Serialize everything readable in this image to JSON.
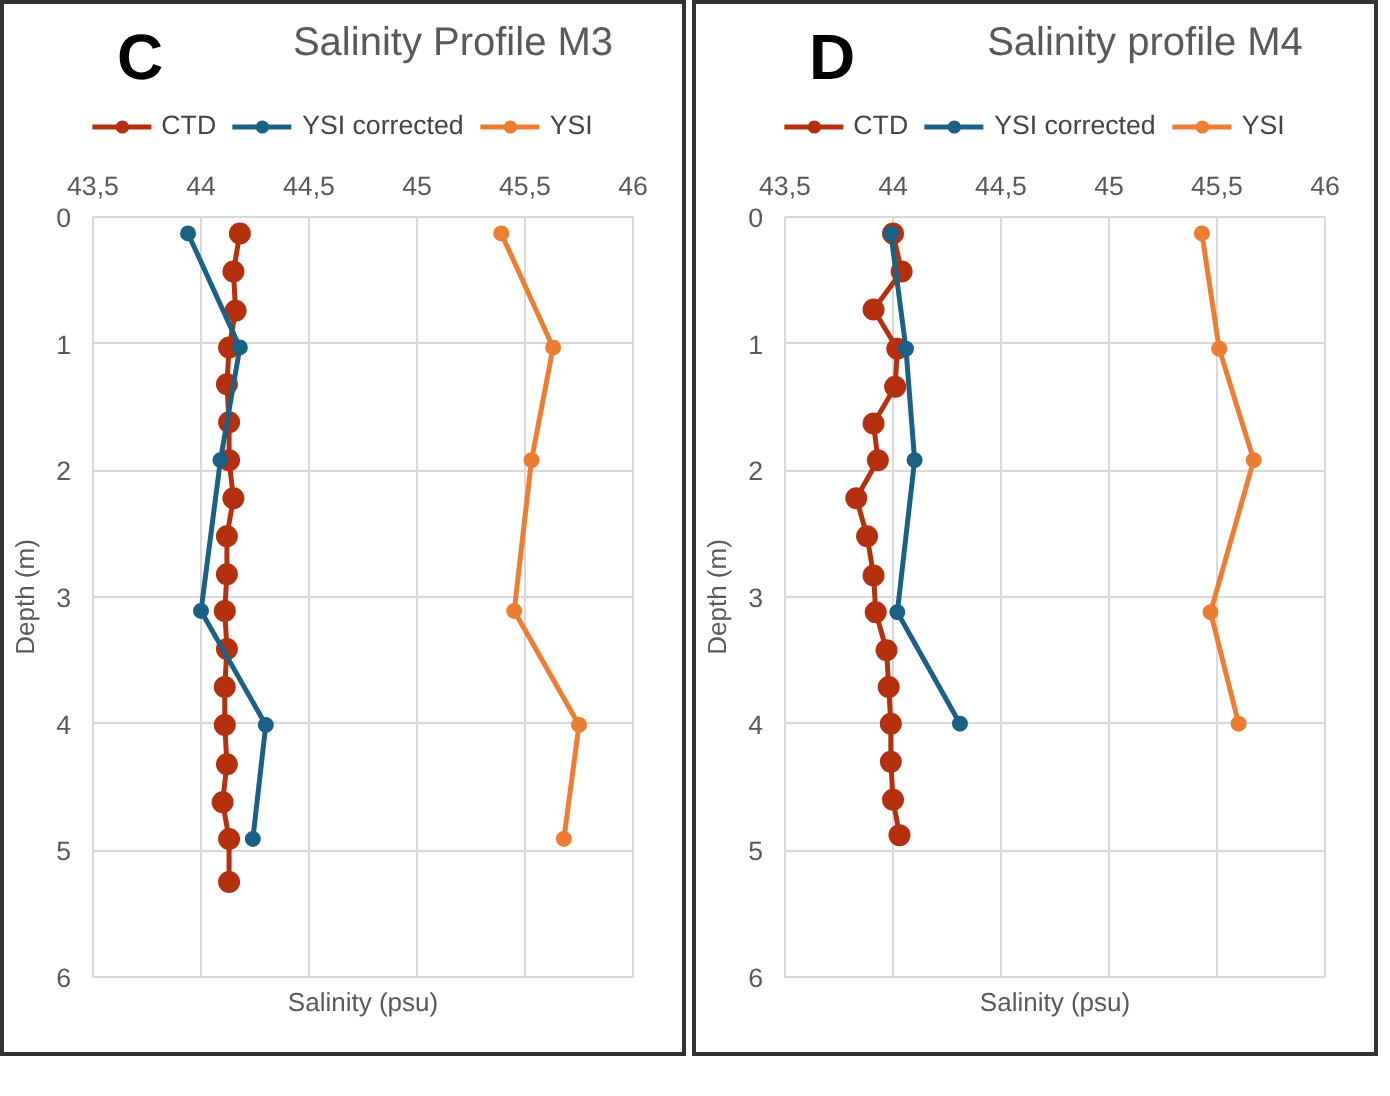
{
  "chart_data": [
    {
      "type": "line",
      "title": "Salinity Profile M3",
      "annotations": [
        "C"
      ],
      "xlabel": "Salinity (psu)",
      "ylabel": "Depth (m)",
      "xlim": [
        43.5,
        46
      ],
      "xticks": [
        {
          "value": 43.5,
          "label": "43,5"
        },
        44,
        {
          "value": 44.5,
          "label": "44,5"
        },
        45,
        {
          "value": 45.5,
          "label": "45,5"
        },
        46
      ],
      "ylim": [
        6,
        0
      ],
      "yticks": [
        0,
        1,
        2,
        3,
        4,
        5,
        6
      ],
      "grid": true,
      "legend": "top",
      "marker": "circle",
      "line_style": "solid",
      "series": [
        {
          "name": "CTD",
          "color": "#b5300e",
          "x": [
            44.18,
            44.15,
            44.16,
            44.13,
            44.12,
            44.13,
            44.13,
            44.15,
            44.12,
            44.12,
            44.11,
            44.12,
            44.11,
            44.11,
            44.12,
            44.1,
            44.13,
            44.13
          ],
          "values": [
            0.13,
            0.43,
            0.74,
            1.03,
            1.32,
            1.62,
            1.92,
            2.22,
            2.52,
            2.82,
            3.11,
            3.41,
            3.71,
            4.01,
            4.32,
            4.62,
            4.91,
            5.25
          ]
        },
        {
          "name": "YSI corrected",
          "color": "#1b6185",
          "x": [
            43.94,
            44.18,
            44.09,
            44.0,
            44.3,
            44.24
          ],
          "values": [
            0.13,
            1.03,
            1.92,
            3.11,
            4.01,
            4.91
          ]
        },
        {
          "name": "YSI",
          "color": "#ed7d31",
          "x": [
            45.39,
            45.63,
            45.53,
            45.45,
            45.75,
            45.68
          ],
          "values": [
            0.13,
            1.03,
            1.92,
            3.11,
            4.01,
            4.91
          ]
        }
      ]
    },
    {
      "type": "line",
      "title": "Salinity profile M4",
      "annotations": [
        "D"
      ],
      "xlabel": "Salinity (psu)",
      "ylabel": "Depth (m)",
      "xlim": [
        43.5,
        46
      ],
      "xticks": [
        {
          "value": 43.5,
          "label": "43,5"
        },
        44,
        {
          "value": 44.5,
          "label": "44,5"
        },
        45,
        {
          "value": 45.5,
          "label": "45,5"
        },
        46
      ],
      "ylim": [
        6,
        0
      ],
      "yticks": [
        0,
        1,
        2,
        3,
        4,
        5,
        6
      ],
      "grid": true,
      "legend": "top",
      "marker": "circle",
      "line_style": "solid",
      "series": [
        {
          "name": "CTD",
          "color": "#b5300e",
          "x": [
            44.0,
            44.04,
            43.91,
            44.02,
            44.01,
            43.91,
            43.93,
            43.83,
            43.88,
            43.91,
            43.92,
            43.97,
            43.98,
            43.99,
            43.99,
            44.0,
            44.03
          ],
          "values": [
            0.13,
            0.43,
            0.73,
            1.04,
            1.34,
            1.63,
            1.92,
            2.22,
            2.52,
            2.83,
            3.12,
            3.42,
            3.71,
            4.0,
            4.3,
            4.6,
            4.88
          ]
        },
        {
          "name": "YSI corrected",
          "color": "#1b6185",
          "x": [
            43.99,
            44.06,
            44.1,
            44.02,
            44.31
          ],
          "values": [
            0.13,
            1.04,
            1.92,
            3.12,
            4.0
          ]
        },
        {
          "name": "YSI",
          "color": "#ed7d31",
          "x": [
            45.43,
            45.51,
            45.67,
            45.47,
            45.6
          ],
          "values": [
            0.13,
            1.04,
            1.92,
            3.12,
            4.0
          ]
        }
      ]
    }
  ]
}
